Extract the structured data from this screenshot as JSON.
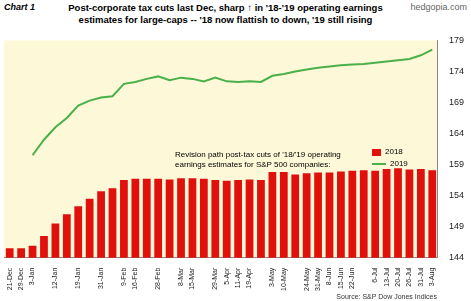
{
  "chart_data": {
    "type": "bar",
    "chart_label": "Chart 1",
    "watermark": "hedgopia.com",
    "title": "Post-corporate tax cuts last Dec, sharp ↑ in '18-'19 operating earnings estimates for large-caps -- '18 now flattish to down, '19 still rising",
    "annotation": "Revision path post-tax cuts of '18/'19 operating earnings estimates for S&P 500 companies:",
    "source": "Source: S&P Dow Jones Indices",
    "categories": [
      "21-Dec",
      "29-Dec",
      "3-Jan",
      null,
      "12-Jan",
      null,
      "19-Jan",
      null,
      "31-Jan",
      null,
      "9-Feb",
      "16-Feb",
      null,
      "28-Feb",
      null,
      "8-Mar",
      "15-Mar",
      null,
      "29-Mar",
      "5-Apr",
      "11-Apr",
      "19-Apr",
      null,
      "3-May",
      "10-May",
      null,
      "24-May",
      "31-May",
      "8-Jun",
      "15-Jun",
      "22-Jun",
      null,
      "6-Jul",
      "13-Jul",
      "20-Jul",
      "26-Jul",
      "31-Jul",
      "3-Aug"
    ],
    "series": [
      {
        "name": "2018",
        "type": "bar",
        "color": "#e0100c",
        "values": [
          145.5,
          145.5,
          145.9,
          147.5,
          149.5,
          151.0,
          152.3,
          153.5,
          154.7,
          155.2,
          156.5,
          156.7,
          156.7,
          156.7,
          156.6,
          156.8,
          156.8,
          156.7,
          156.5,
          156.4,
          156.5,
          156.6,
          156.5,
          157.8,
          157.8,
          157.4,
          157.6,
          157.7,
          157.7,
          157.9,
          158.0,
          158.1,
          158.0,
          158.3,
          158.4,
          158.2,
          158.3,
          158.1
        ]
      },
      {
        "name": "2019",
        "type": "line",
        "color": "#49b04a",
        "line_style": "solid",
        "marker": "none",
        "values": [
          null,
          null,
          160.5,
          163.0,
          165.0,
          166.5,
          168.5,
          169.3,
          169.8,
          170.0,
          172.0,
          172.3,
          172.8,
          173.2,
          172.6,
          173.0,
          172.8,
          172.4,
          173.0,
          172.4,
          172.3,
          172.4,
          172.3,
          173.3,
          173.6,
          174.0,
          174.3,
          174.6,
          174.8,
          175.0,
          175.1,
          175.2,
          175.4,
          175.6,
          175.8,
          176.0,
          176.6,
          177.5
        ]
      }
    ],
    "ylim": [
      144,
      179
    ],
    "yticks": [
      144,
      149,
      154,
      159,
      164,
      169,
      174,
      179
    ],
    "grid": false,
    "legend": "right"
  }
}
